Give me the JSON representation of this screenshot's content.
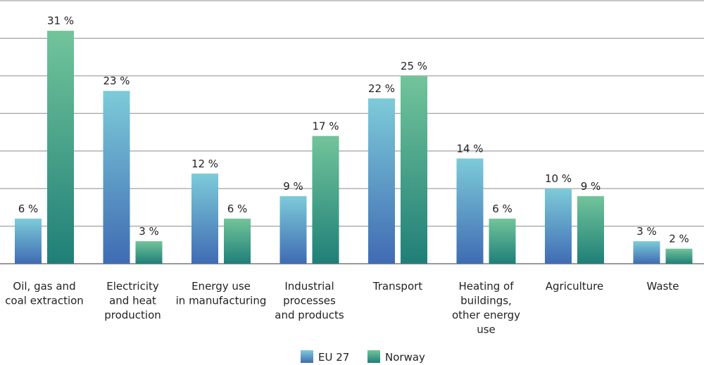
{
  "chart_data": {
    "type": "bar",
    "title": "",
    "xlabel": "",
    "ylabel": "",
    "ylim": [
      0,
      35
    ],
    "grid": true,
    "legend_position": "bottom-center",
    "categories": [
      [
        "Oil, gas and",
        "coal extraction"
      ],
      [
        "Electricity",
        "and heat",
        "production"
      ],
      [
        "Energy use",
        "in manufacturing"
      ],
      [
        "Industrial",
        "processes",
        "and products"
      ],
      [
        "Transport"
      ],
      [
        "Heating of",
        "buildings,",
        "other energy",
        "use"
      ],
      [
        "Agriculture"
      ],
      [
        "Waste"
      ]
    ],
    "series": [
      {
        "name": "EU 27",
        "values": [
          6,
          23,
          12,
          9,
          22,
          14,
          10,
          3
        ],
        "labels": [
          "6 %",
          "23 %",
          "12 %",
          "9 %",
          "22 %",
          "14 %",
          "10 %",
          "3 %"
        ],
        "color_top": "#7dcbd9",
        "color_bottom": "#3f6bb3"
      },
      {
        "name": "Norway",
        "values": [
          31,
          3,
          6,
          17,
          25,
          6,
          9,
          2
        ],
        "labels": [
          "31 %",
          "3 %",
          "6 %",
          "17 %",
          "25 %",
          "6 %",
          "9 %",
          "2 %"
        ],
        "color_top": "#72c49a",
        "color_bottom": "#1f7f78"
      }
    ],
    "colors": {
      "grid": "#8c8c8c",
      "axis": "#5a5a5a",
      "text": "#222222"
    }
  }
}
